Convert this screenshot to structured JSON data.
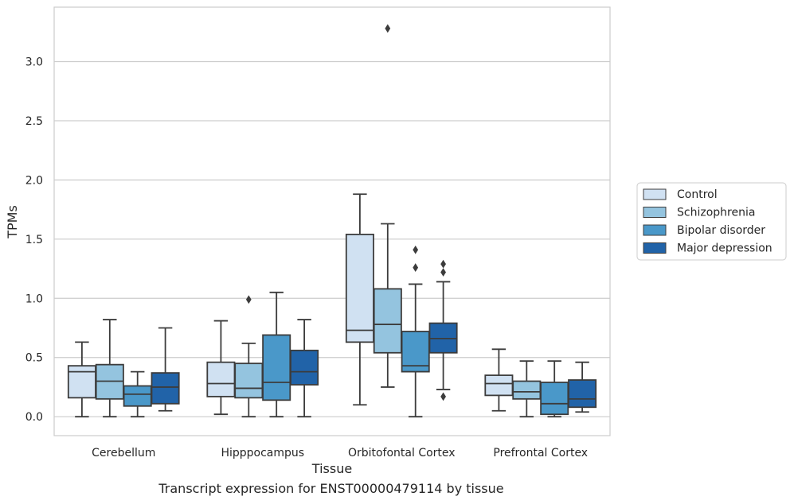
{
  "caption": "Transcript expression for ENST00000479114 by tissue",
  "chart_data": {
    "type": "box",
    "xlabel": "Tissue",
    "ylabel": "TPMs",
    "ylim": [
      -0.16,
      3.46
    ],
    "yticks": [
      "0.0",
      "0.5",
      "1.0",
      "1.5",
      "2.0",
      "2.5",
      "3.0"
    ],
    "grid": "horizontal",
    "legend_position": "right",
    "categories": [
      "Cerebellum",
      "Hipppocampus",
      "Orbitofontal Cortex",
      "Prefrontal Cortex"
    ],
    "series": [
      {
        "name": "Control",
        "color": "#d0e1f2",
        "boxes": [
          {
            "whisker_low": 0.0,
            "q1": 0.16,
            "median": 0.38,
            "q3": 0.43,
            "whisker_high": 0.63,
            "outliers": []
          },
          {
            "whisker_low": 0.02,
            "q1": 0.17,
            "median": 0.28,
            "q3": 0.46,
            "whisker_high": 0.81,
            "outliers": []
          },
          {
            "whisker_low": 0.1,
            "q1": 0.63,
            "median": 0.73,
            "q3": 1.54,
            "whisker_high": 1.88,
            "outliers": []
          },
          {
            "whisker_low": 0.05,
            "q1": 0.18,
            "median": 0.28,
            "q3": 0.35,
            "whisker_high": 0.57,
            "outliers": []
          }
        ]
      },
      {
        "name": "Schizophrenia",
        "color": "#94c4df",
        "boxes": [
          {
            "whisker_low": 0.0,
            "q1": 0.15,
            "median": 0.3,
            "q3": 0.44,
            "whisker_high": 0.82,
            "outliers": []
          },
          {
            "whisker_low": 0.0,
            "q1": 0.16,
            "median": 0.24,
            "q3": 0.45,
            "whisker_high": 0.62,
            "outliers": [
              0.99
            ]
          },
          {
            "whisker_low": 0.25,
            "q1": 0.54,
            "median": 0.78,
            "q3": 1.08,
            "whisker_high": 1.63,
            "outliers": [
              3.28
            ]
          },
          {
            "whisker_low": 0.0,
            "q1": 0.15,
            "median": 0.21,
            "q3": 0.3,
            "whisker_high": 0.47,
            "outliers": []
          }
        ]
      },
      {
        "name": "Bipolar disorder",
        "color": "#4a98c9",
        "boxes": [
          {
            "whisker_low": 0.0,
            "q1": 0.09,
            "median": 0.19,
            "q3": 0.26,
            "whisker_high": 0.38,
            "outliers": []
          },
          {
            "whisker_low": 0.0,
            "q1": 0.14,
            "median": 0.29,
            "q3": 0.69,
            "whisker_high": 1.05,
            "outliers": []
          },
          {
            "whisker_low": 0.0,
            "q1": 0.38,
            "median": 0.43,
            "q3": 0.72,
            "whisker_high": 1.12,
            "outliers": [
              1.26,
              1.41
            ]
          },
          {
            "whisker_low": 0.0,
            "q1": 0.02,
            "median": 0.11,
            "q3": 0.29,
            "whisker_high": 0.47,
            "outliers": []
          }
        ]
      },
      {
        "name": "Major depression",
        "color": "#2163a8",
        "boxes": [
          {
            "whisker_low": 0.05,
            "q1": 0.11,
            "median": 0.25,
            "q3": 0.37,
            "whisker_high": 0.75,
            "outliers": []
          },
          {
            "whisker_low": 0.0,
            "q1": 0.27,
            "median": 0.38,
            "q3": 0.56,
            "whisker_high": 0.82,
            "outliers": []
          },
          {
            "whisker_low": 0.23,
            "q1": 0.54,
            "median": 0.66,
            "q3": 0.79,
            "whisker_high": 1.14,
            "outliers": [
              0.17,
              1.22,
              1.29
            ]
          },
          {
            "whisker_low": 0.04,
            "q1": 0.08,
            "median": 0.15,
            "q3": 0.31,
            "whisker_high": 0.46,
            "outliers": []
          }
        ]
      }
    ]
  }
}
